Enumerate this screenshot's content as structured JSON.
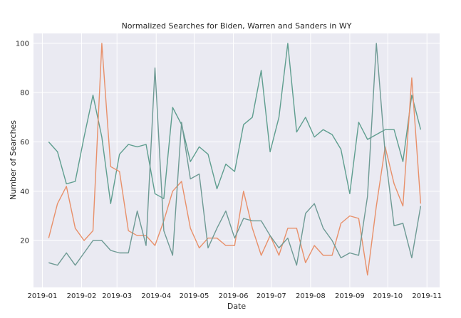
{
  "chart_data": {
    "type": "line",
    "title": "Normalized Searches for Biden, Warren and Sanders in WY",
    "xlabel": "Date",
    "ylabel": "Number of Searches",
    "ylim": [
      1,
      104
    ],
    "xlim": [
      "2018-12-25",
      "2019-11-11"
    ],
    "grid": true,
    "legend": "none",
    "x_ticks": [
      "2019-01-01",
      "2019-02-01",
      "2019-03-01",
      "2019-04-01",
      "2019-05-01",
      "2019-06-01",
      "2019-07-01",
      "2019-08-01",
      "2019-09-01",
      "2019-10-01",
      "2019-11-01"
    ],
    "x_tick_labels": [
      "2019-01",
      "2019-02",
      "2019-03",
      "2019-04",
      "2019-05",
      "2019-06",
      "2019-07",
      "2019-08",
      "2019-09",
      "2019-10",
      "2019-11"
    ],
    "y_ticks": [
      20,
      40,
      60,
      80,
      100
    ],
    "x": [
      "2019-01-06",
      "2019-01-13",
      "2019-01-20",
      "2019-01-27",
      "2019-02-03",
      "2019-02-10",
      "2019-02-17",
      "2019-02-24",
      "2019-03-03",
      "2019-03-10",
      "2019-03-17",
      "2019-03-24",
      "2019-03-31",
      "2019-04-07",
      "2019-04-14",
      "2019-04-21",
      "2019-04-28",
      "2019-05-05",
      "2019-05-12",
      "2019-05-19",
      "2019-05-26",
      "2019-06-02",
      "2019-06-09",
      "2019-06-16",
      "2019-06-23",
      "2019-06-30",
      "2019-07-07",
      "2019-07-14",
      "2019-07-21",
      "2019-07-28",
      "2019-08-04",
      "2019-08-11",
      "2019-08-18",
      "2019-08-25",
      "2019-09-01",
      "2019-09-08",
      "2019-09-15",
      "2019-09-22",
      "2019-09-29",
      "2019-10-06",
      "2019-10-13",
      "2019-10-20",
      "2019-10-27"
    ],
    "series": [
      {
        "color": "#5f9e8f",
        "values": [
          60,
          56,
          43,
          44,
          62,
          79,
          62,
          35,
          55,
          59,
          58,
          59,
          39,
          37,
          74,
          67,
          52,
          58,
          55,
          41,
          51,
          48,
          67,
          70,
          89,
          56,
          70,
          100,
          64,
          70,
          62,
          65,
          63,
          57,
          39,
          68,
          61,
          63,
          65,
          65,
          52,
          79,
          65
        ]
      },
      {
        "color": "#e8906a",
        "values": [
          21,
          35,
          42,
          25,
          20,
          24,
          100,
          50,
          48,
          24,
          22,
          22,
          18,
          28,
          40,
          44,
          25,
          17,
          21,
          21,
          18,
          18,
          40,
          25,
          14,
          22,
          14,
          25,
          25,
          11,
          18,
          14,
          14,
          27,
          30,
          29,
          6,
          34,
          58,
          43,
          34,
          86,
          35
        ]
      },
      {
        "color": "#6e9a94",
        "values": [
          11,
          10,
          15,
          10,
          15,
          20,
          20,
          16,
          15,
          15,
          32,
          18,
          90,
          24,
          14,
          68,
          45,
          47,
          17,
          25,
          32,
          21,
          29,
          28,
          28,
          22,
          17,
          21,
          10,
          31,
          35,
          25,
          20,
          13,
          15,
          14,
          38,
          100,
          55,
          26,
          27,
          13,
          34
        ]
      }
    ]
  }
}
